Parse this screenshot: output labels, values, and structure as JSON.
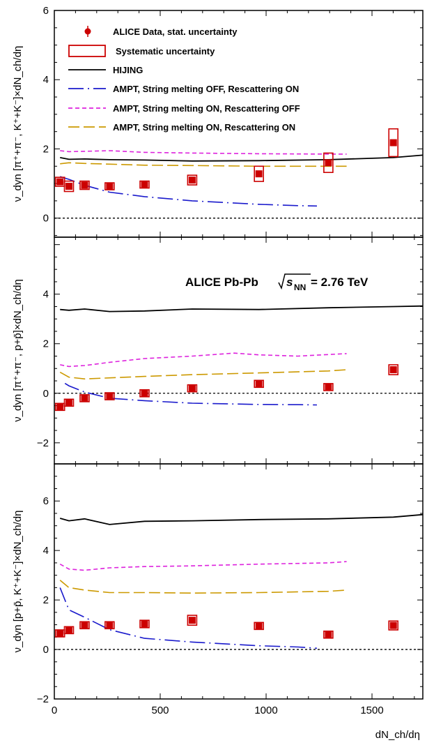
{
  "chart_data": {
    "type": "line",
    "xlabel": "dN_ch/dη",
    "xlim": [
      0,
      1740
    ],
    "xticks": [
      0,
      500,
      1000,
      1500
    ],
    "colors": {
      "data": "#cc0000",
      "hijing": "#000000",
      "ampt_off_on": "#1a1acc",
      "ampt_on_off": "#dd22dd",
      "ampt_on_on": "#cc9900"
    },
    "legend": {
      "placement": "top-left of top panel",
      "entries": [
        {
          "key": "data",
          "label": "ALICE Data, stat. uncertainty"
        },
        {
          "key": "sys",
          "label": "Systematic uncertainty"
        },
        {
          "key": "hijing",
          "label": "HIJING"
        },
        {
          "key": "ampt_off_on",
          "label": "AMPT, String melting OFF, Rescattering ON"
        },
        {
          "key": "ampt_on_off",
          "label": "AMPT, String melting ON, Rescattering OFF"
        },
        {
          "key": "ampt_on_on",
          "label": "AMPT, String melting ON, Rescattering ON"
        }
      ]
    },
    "annotation": {
      "prefix": "ALICE Pb-Pb ",
      "var": "s",
      "sub": "NN",
      "suffix": " = 2.76 TeV"
    },
    "panels": [
      {
        "ylabel": "ν_dyn [π⁺+π⁻, K⁺+K⁻]×dN_ch/dη",
        "ylim": [
          -0.55,
          6.0
        ],
        "yticks": [
          0,
          2,
          4,
          6
        ],
        "data": {
          "x": [
            27,
            69,
            143,
            261,
            426,
            651,
            966,
            1294,
            1601
          ],
          "y": [
            1.05,
            0.92,
            0.95,
            0.92,
            0.97,
            1.1,
            1.28,
            1.6,
            2.18
          ],
          "sys": [
            0.13,
            0.15,
            0.12,
            0.08,
            0.1,
            0.14,
            0.22,
            0.28,
            0.4
          ]
        },
        "hijing": {
          "x": [
            27,
            69,
            143,
            261,
            426,
            651,
            966,
            1294,
            1601,
            1740
          ],
          "y": [
            1.75,
            1.7,
            1.71,
            1.69,
            1.68,
            1.65,
            1.66,
            1.69,
            1.75,
            1.82
          ]
        },
        "ampt_off_on": {
          "x": [
            27,
            69,
            143,
            261,
            426,
            651,
            966,
            1150,
            1240
          ],
          "y": [
            1.2,
            1.12,
            0.95,
            0.75,
            0.62,
            0.5,
            0.4,
            0.36,
            0.35
          ]
        },
        "ampt_on_off": {
          "x": [
            27,
            69,
            143,
            261,
            426,
            651,
            966,
            1294,
            1380
          ],
          "y": [
            1.95,
            1.92,
            1.93,
            1.95,
            1.9,
            1.88,
            1.86,
            1.85,
            1.85
          ]
        },
        "ampt_on_on": {
          "x": [
            27,
            69,
            143,
            261,
            426,
            651,
            966,
            1294,
            1380
          ],
          "y": [
            1.57,
            1.6,
            1.58,
            1.56,
            1.53,
            1.52,
            1.5,
            1.5,
            1.5
          ]
        }
      },
      {
        "ylabel": "ν_dyn [π⁺+π⁻, p+p̄]×dN_ch/dη",
        "ylim": [
          -2.85,
          6.3
        ],
        "yticks": [
          -2,
          0,
          2,
          4
        ],
        "data": {
          "x": [
            27,
            69,
            143,
            261,
            426,
            651,
            966,
            1294,
            1601
          ],
          "y": [
            -0.55,
            -0.38,
            -0.2,
            -0.12,
            0.0,
            0.2,
            0.38,
            0.25,
            0.95
          ],
          "sys": [
            0.08,
            0.08,
            0.08,
            0.08,
            0.08,
            0.1,
            0.12,
            0.1,
            0.2
          ]
        },
        "hijing": {
          "x": [
            27,
            69,
            143,
            261,
            426,
            651,
            966,
            1294,
            1601,
            1740
          ],
          "y": [
            3.38,
            3.35,
            3.4,
            3.3,
            3.32,
            3.4,
            3.38,
            3.45,
            3.5,
            3.52
          ]
        },
        "ampt_off_on": {
          "x": [
            50,
            69,
            143,
            261,
            426,
            651,
            966,
            1150,
            1240
          ],
          "y": [
            0.4,
            0.3,
            0.05,
            -0.2,
            -0.3,
            -0.4,
            -0.45,
            -0.46,
            -0.47
          ]
        },
        "ampt_on_off": {
          "x": [
            27,
            69,
            143,
            261,
            426,
            651,
            850,
            966,
            1150,
            1380
          ],
          "y": [
            1.15,
            1.08,
            1.12,
            1.25,
            1.4,
            1.5,
            1.62,
            1.55,
            1.5,
            1.6
          ]
        },
        "ampt_on_on": {
          "x": [
            27,
            69,
            143,
            261,
            426,
            651,
            966,
            1294,
            1380
          ],
          "y": [
            0.85,
            0.65,
            0.58,
            0.62,
            0.68,
            0.75,
            0.82,
            0.9,
            0.95
          ]
        }
      },
      {
        "ylabel": "ν_dyn [p+p̄, K⁺+K⁻]×dN_ch/dη",
        "ylim": [
          -2.0,
          7.5
        ],
        "yticks": [
          -2,
          0,
          2,
          4,
          6
        ],
        "data": {
          "x": [
            27,
            69,
            143,
            261,
            426,
            651,
            966,
            1294,
            1601
          ],
          "y": [
            0.65,
            0.78,
            0.98,
            0.98,
            1.03,
            1.18,
            0.95,
            0.6,
            0.97
          ],
          "sys": [
            0.1,
            0.1,
            0.12,
            0.12,
            0.15,
            0.2,
            0.12,
            0.1,
            0.18
          ]
        },
        "hijing": {
          "x": [
            27,
            69,
            143,
            261,
            426,
            651,
            966,
            1294,
            1601,
            1740
          ],
          "y": [
            5.3,
            5.2,
            5.28,
            5.05,
            5.18,
            5.2,
            5.25,
            5.28,
            5.35,
            5.45
          ]
        },
        "ampt_off_on": {
          "x": [
            27,
            50,
            69,
            143,
            261,
            426,
            651,
            966,
            1150,
            1240
          ],
          "y": [
            2.5,
            2.0,
            1.6,
            1.3,
            0.8,
            0.45,
            0.3,
            0.15,
            0.1,
            0.05
          ]
        },
        "ampt_on_off": {
          "x": [
            27,
            69,
            143,
            261,
            426,
            651,
            966,
            1294,
            1380
          ],
          "y": [
            3.45,
            3.25,
            3.2,
            3.3,
            3.35,
            3.38,
            3.45,
            3.5,
            3.55
          ]
        },
        "ampt_on_on": {
          "x": [
            27,
            69,
            143,
            261,
            426,
            651,
            966,
            1294,
            1380
          ],
          "y": [
            2.8,
            2.5,
            2.4,
            2.3,
            2.3,
            2.28,
            2.3,
            2.35,
            2.4
          ]
        }
      }
    ]
  }
}
